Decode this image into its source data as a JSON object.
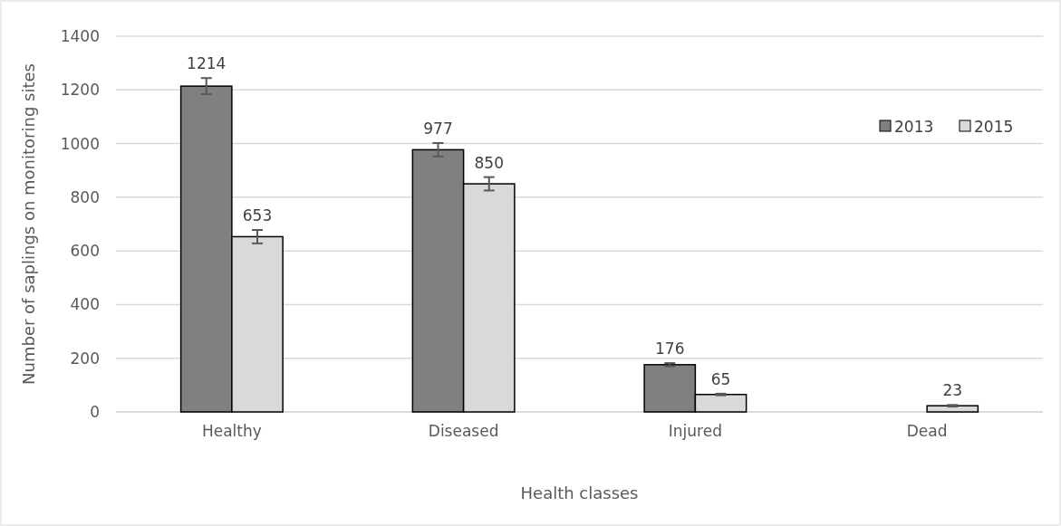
{
  "chart_data": {
    "type": "bar",
    "xlabel": "Health classes",
    "ylabel": "Number of saplings on monitoring sites",
    "categories": [
      "Healthy",
      "Diseased",
      "Injured",
      "Dead"
    ],
    "series": [
      {
        "name": "2013",
        "color": "#808080",
        "values": [
          1214,
          977,
          176,
          0
        ],
        "errors": [
          30,
          25,
          6,
          null
        ],
        "value_labels": [
          "1214",
          "977",
          "176",
          null
        ]
      },
      {
        "name": "2015",
        "color": "#d9d9d9",
        "values": [
          653,
          850,
          65,
          23
        ],
        "errors": [
          25,
          25,
          3,
          3
        ],
        "value_labels": [
          "653",
          "850",
          "65",
          "23"
        ]
      }
    ],
    "ylim": [
      0,
      1400
    ],
    "yticks": [
      0,
      200,
      400,
      600,
      800,
      1000,
      1200,
      1400
    ],
    "grid": "y",
    "legend": "top right"
  }
}
